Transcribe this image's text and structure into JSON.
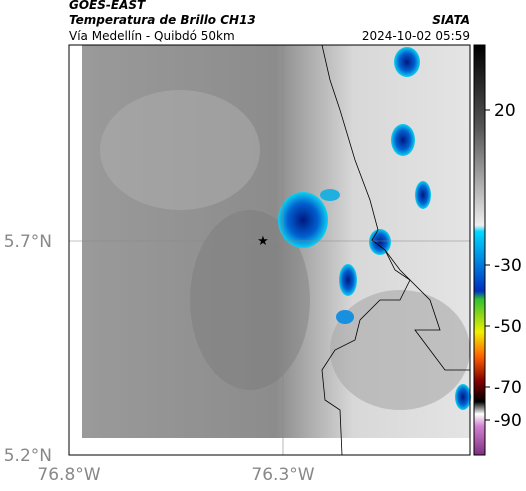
{
  "header": {
    "satellite": "GOES-EAST",
    "title": "Temperatura de Brillo CH13",
    "agency": "SIATA",
    "subtitle": "Vía Medellín - Quibdó 50km",
    "datetime": "2024-10-02 05:59"
  },
  "map": {
    "lat_labels": [
      "5.7°N",
      "5.2°N"
    ],
    "lon_labels": [
      "76.8°W",
      "76.3°W"
    ]
  },
  "colorbar": {
    "ticks": [
      20,
      -30,
      -50,
      -70,
      -90
    ]
  }
}
